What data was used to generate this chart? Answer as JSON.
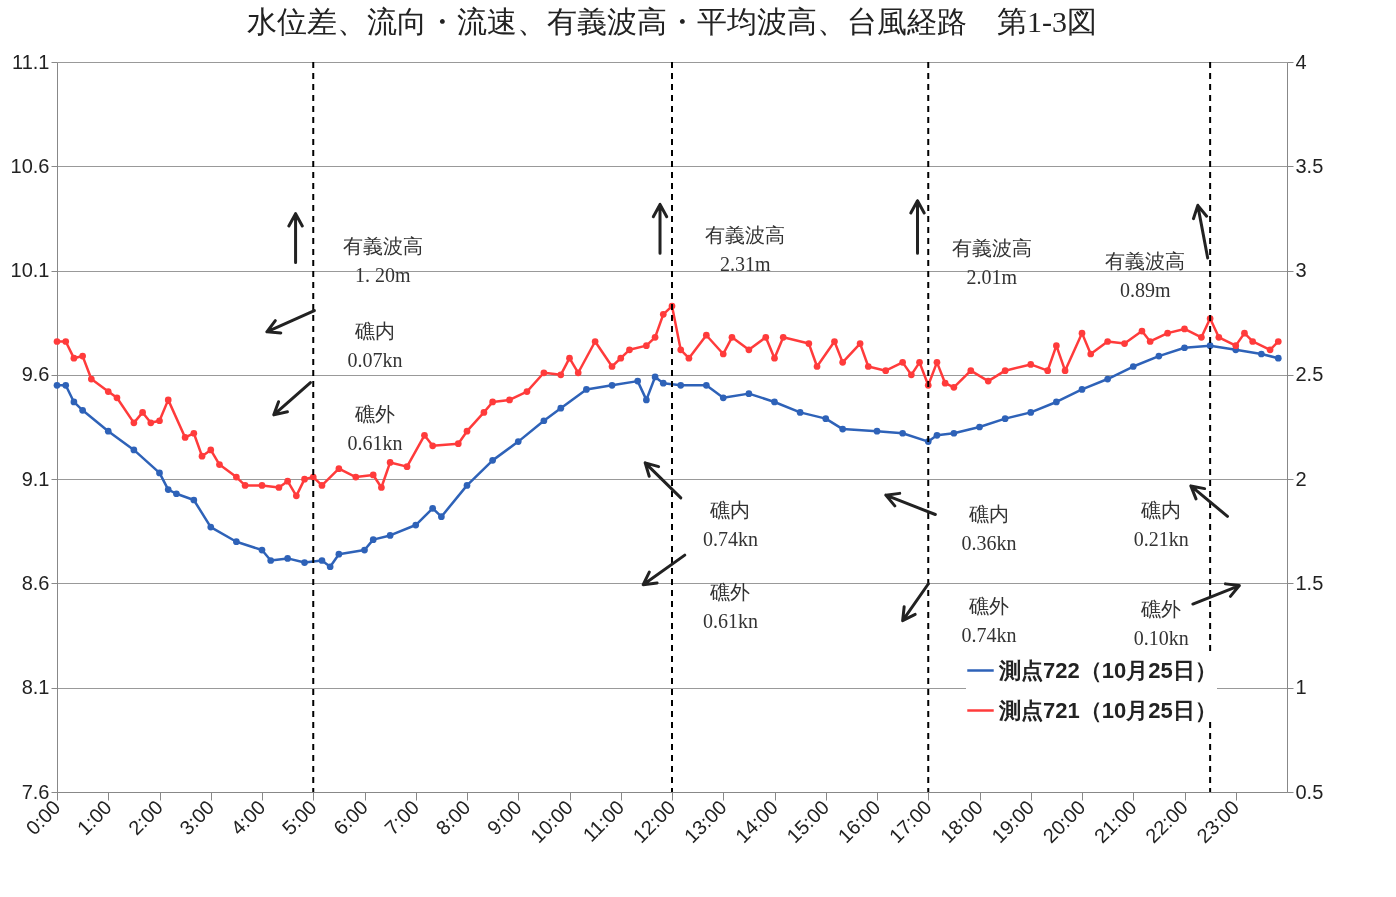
{
  "chart_data": {
    "type": "line",
    "title": "水位差、流向・流速、有義波高・平均波高、台風経路　第1-3図",
    "xlim": [
      0,
      24
    ],
    "xticks": [
      {
        "value": 0,
        "label": "0:00"
      },
      {
        "value": 1,
        "label": "1:00"
      },
      {
        "value": 2,
        "label": "2:00"
      },
      {
        "value": 3,
        "label": "3:00"
      },
      {
        "value": 4,
        "label": "4:00"
      },
      {
        "value": 5,
        "label": "5:00"
      },
      {
        "value": 6,
        "label": "6:00"
      },
      {
        "value": 7,
        "label": "7:00"
      },
      {
        "value": 8,
        "label": "8:00"
      },
      {
        "value": 9,
        "label": "9:00"
      },
      {
        "value": 10,
        "label": "10:00"
      },
      {
        "value": 11,
        "label": "11:00"
      },
      {
        "value": 12,
        "label": "12:00"
      },
      {
        "value": 13,
        "label": "13:00"
      },
      {
        "value": 14,
        "label": "14:00"
      },
      {
        "value": 15,
        "label": "15:00"
      },
      {
        "value": 16,
        "label": "16:00"
      },
      {
        "value": 17,
        "label": "17:00"
      },
      {
        "value": 18,
        "label": "18:00"
      },
      {
        "value": 19,
        "label": "19:00"
      },
      {
        "value": 20,
        "label": "20:00"
      },
      {
        "value": 21,
        "label": "21:00"
      },
      {
        "value": 22,
        "label": "22:00"
      },
      {
        "value": 23,
        "label": "23:00"
      }
    ],
    "ylim": [
      7.6,
      11.1
    ],
    "yticks": [
      7.6,
      8.1,
      8.6,
      9.1,
      9.6,
      10.1,
      10.6,
      11.1
    ],
    "y2lim": [
      0.5,
      4
    ],
    "y2ticks": [
      0.5,
      1,
      1.5,
      2,
      2.5,
      3,
      3.5,
      4
    ],
    "grid": "y",
    "legend": "bottom right",
    "marker": "circle",
    "line_style": "solid",
    "series": [
      {
        "name": "測点722（10月25日）",
        "color": "#2e62b8",
        "x": [
          0,
          0.17,
          0.33,
          0.5,
          1,
          1.5,
          2,
          2.17,
          2.33,
          2.67,
          3,
          3.5,
          4,
          4.17,
          4.5,
          4.83,
          5.17,
          5.33,
          5.5,
          6,
          6.17,
          6.5,
          7,
          7.33,
          7.5,
          8,
          8.5,
          9,
          9.5,
          9.83,
          10.33,
          10.83,
          11.33,
          11.5,
          11.67,
          11.83,
          12.17,
          12.67,
          13,
          13.5,
          14,
          14.5,
          15,
          15.33,
          16,
          16.5,
          17,
          17.17,
          17.5,
          18,
          18.5,
          19,
          19.5,
          20,
          20.5,
          21,
          21.5,
          22,
          22.5,
          23,
          23.5,
          23.83
        ],
        "values": [
          9.55,
          9.55,
          9.47,
          9.43,
          9.33,
          9.24,
          9.13,
          9.05,
          9.03,
          9.0,
          8.87,
          8.8,
          8.76,
          8.71,
          8.72,
          8.7,
          8.71,
          8.68,
          8.74,
          8.76,
          8.81,
          8.83,
          8.88,
          8.96,
          8.92,
          9.07,
          9.19,
          9.28,
          9.38,
          9.44,
          9.53,
          9.55,
          9.57,
          9.48,
          9.59,
          9.56,
          9.55,
          9.55,
          9.49,
          9.51,
          9.47,
          9.42,
          9.39,
          9.34,
          9.33,
          9.32,
          9.28,
          9.31,
          9.32,
          9.35,
          9.39,
          9.42,
          9.47,
          9.53,
          9.58,
          9.64,
          9.69,
          9.73,
          9.74,
          9.72,
          9.7,
          9.68
        ]
      },
      {
        "name": "測点721（10月25日）",
        "color": "#ff3b3b",
        "x": [
          0,
          0.17,
          0.33,
          0.5,
          0.67,
          1,
          1.17,
          1.5,
          1.67,
          1.83,
          2,
          2.17,
          2.5,
          2.67,
          2.83,
          3,
          3.17,
          3.5,
          3.67,
          4,
          4.33,
          4.5,
          4.67,
          4.83,
          5,
          5.17,
          5.5,
          5.83,
          6.17,
          6.33,
          6.5,
          6.83,
          7.17,
          7.33,
          7.83,
          8,
          8.33,
          8.5,
          8.83,
          9.17,
          9.5,
          9.83,
          10,
          10.17,
          10.5,
          10.83,
          11,
          11.17,
          11.5,
          11.67,
          11.83,
          12,
          12.17,
          12.33,
          12.67,
          13,
          13.17,
          13.5,
          13.83,
          14,
          14.17,
          14.67,
          14.83,
          15.17,
          15.33,
          15.67,
          15.83,
          16.17,
          16.5,
          16.67,
          16.83,
          17,
          17.17,
          17.33,
          17.5,
          17.83,
          18.17,
          18.5,
          19,
          19.33,
          19.5,
          19.67,
          20,
          20.17,
          20.5,
          20.83,
          21.17,
          21.33,
          21.67,
          22,
          22.33,
          22.5,
          22.67,
          23,
          23.17,
          23.33,
          23.67,
          23.83
        ],
        "values": [
          9.76,
          9.76,
          9.68,
          9.69,
          9.58,
          9.52,
          9.49,
          9.37,
          9.42,
          9.37,
          9.38,
          9.48,
          9.3,
          9.32,
          9.21,
          9.24,
          9.17,
          9.11,
          9.07,
          9.07,
          9.06,
          9.09,
          9.02,
          9.1,
          9.11,
          9.07,
          9.15,
          9.11,
          9.12,
          9.06,
          9.18,
          9.16,
          9.31,
          9.26,
          9.27,
          9.33,
          9.42,
          9.47,
          9.48,
          9.52,
          9.61,
          9.6,
          9.68,
          9.61,
          9.76,
          9.64,
          9.68,
          9.72,
          9.74,
          9.78,
          9.89,
          9.93,
          9.72,
          9.68,
          9.79,
          9.7,
          9.78,
          9.72,
          9.78,
          9.68,
          9.78,
          9.75,
          9.64,
          9.76,
          9.66,
          9.75,
          9.64,
          9.62,
          9.66,
          9.6,
          9.66,
          9.55,
          9.66,
          9.56,
          9.54,
          9.62,
          9.57,
          9.62,
          9.65,
          9.62,
          9.74,
          9.62,
          9.8,
          9.7,
          9.76,
          9.75,
          9.81,
          9.76,
          9.8,
          9.82,
          9.78,
          9.87,
          9.78,
          9.74,
          9.8,
          9.76,
          9.72,
          9.76
        ]
      }
    ],
    "ref_lines": [
      {
        "axis": "x",
        "value": 5,
        "color": "#000000",
        "line_style": "dashed"
      },
      {
        "axis": "x",
        "value": 12,
        "color": "#000000",
        "line_style": "dashed"
      },
      {
        "axis": "x",
        "value": 17,
        "color": "#000000",
        "line_style": "dashed"
      },
      {
        "axis": "x",
        "value": 22.5,
        "color": "#000000",
        "line_style": "dashed"
      }
    ],
    "annotations": [
      "有義波高\n1. 20m",
      "有義波高\n2.31m",
      "有義波高\n2.01m",
      "有義波高\n0.89m",
      "礁内\n0.07kn",
      "礁外\n0.61kn",
      "礁内\n0.74kn",
      "礁外\n0.61kn",
      "礁内\n0.36kn",
      "礁外\n0.74kn",
      "礁内\n0.21kn",
      "礁外\n0.10kn"
    ]
  }
}
